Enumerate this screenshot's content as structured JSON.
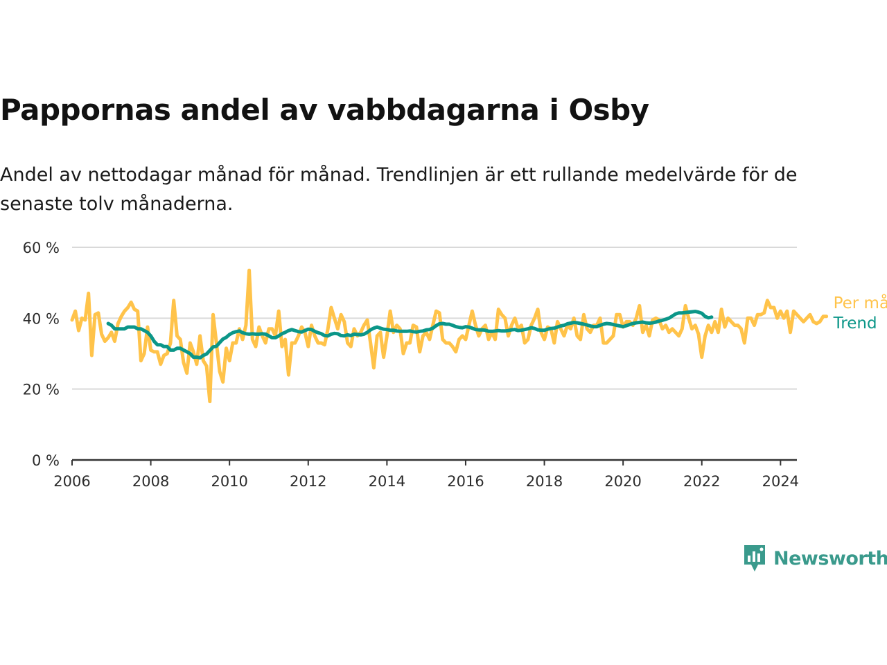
{
  "title": "Pappornas andel av vabbdagarna i Osby",
  "subtitle": "Andel av nettodagar månad för månad. Trendlinjen är ett rullande medelvärde för de senaste tolv månaderna.",
  "brand": {
    "name": "Newsworthy",
    "color": "#3a9a8c",
    "icon": "bar-chart-speech-bubble-icon"
  },
  "colors": {
    "monthly": "#ffc34a",
    "trend": "#0b9688",
    "grid": "#d9d9d9",
    "axis": "#333333"
  },
  "chart_data": {
    "type": "line",
    "title": "Pappornas andel av vabbdagarna i Osby",
    "xlabel": "",
    "ylabel": "",
    "xlim": [
      "2006-01",
      "2024-06"
    ],
    "ylim": [
      0,
      60
    ],
    "x_ticks": [
      "2006",
      "2008",
      "2010",
      "2012",
      "2014",
      "2016",
      "2018",
      "2020",
      "2022",
      "2024"
    ],
    "y_ticks": [
      "0 %",
      "20 %",
      "40 %",
      "60 %"
    ],
    "y_tick_values": [
      0,
      20,
      40,
      60
    ],
    "grid": true,
    "legend": "right-end-labels",
    "series": [
      {
        "name": "Per månad",
        "key": "monthly",
        "start": "2006-01",
        "frequency": "monthly",
        "values": [
          39.5,
          42,
          36.5,
          40,
          39.5,
          47,
          29.5,
          41,
          41.5,
          35.5,
          33.5,
          34.5,
          36,
          33.5,
          38.5,
          40.5,
          42,
          43,
          44.5,
          42.5,
          42,
          28,
          30,
          37.5,
          31,
          30.5,
          30.5,
          27,
          29.5,
          30,
          33,
          45,
          35,
          34,
          27.5,
          24.5,
          33,
          30.5,
          27,
          35,
          28,
          26.5,
          16.5,
          41,
          33,
          25,
          22,
          31.5,
          28,
          33,
          33,
          37,
          34,
          38,
          53.5,
          34,
          32,
          37.5,
          35,
          33,
          37,
          37,
          35,
          42,
          32,
          34,
          24,
          33,
          33,
          35,
          37.5,
          36,
          32,
          38,
          35,
          33,
          33,
          32.5,
          37,
          43,
          40,
          37,
          41,
          39,
          33,
          32,
          37,
          35,
          36,
          38,
          39.5,
          33,
          26,
          35,
          36,
          29,
          35,
          42,
          36,
          38,
          37,
          30,
          33,
          33,
          38,
          37.5,
          30.5,
          35,
          36,
          34,
          38,
          42,
          41.5,
          34,
          33,
          33,
          32,
          30.5,
          34,
          35,
          34,
          38,
          42,
          38,
          35,
          37,
          38,
          34,
          36,
          34,
          42.5,
          41,
          40,
          35,
          38,
          40,
          37,
          38,
          33,
          34,
          38,
          40,
          42.5,
          36,
          34,
          37.5,
          37,
          33,
          39,
          37,
          35,
          38,
          37,
          40,
          35,
          34,
          41,
          37,
          36,
          38,
          38,
          40,
          33,
          33,
          34,
          35,
          41,
          41,
          37.5,
          39,
          39,
          38,
          40,
          43.5,
          36,
          38,
          35,
          39.5,
          40,
          39.5,
          37,
          38,
          36,
          37,
          36,
          35,
          37,
          43.5,
          40,
          37,
          38,
          35.5,
          29,
          35,
          38,
          36,
          39,
          36,
          42.5,
          37.5,
          40,
          39,
          38,
          38,
          37,
          33,
          40,
          40,
          38,
          41,
          41,
          41.5,
          45,
          43,
          43,
          40,
          42,
          40,
          42,
          36,
          42,
          41,
          40,
          39,
          40,
          41,
          39,
          38.5,
          39,
          40.5,
          40.5
        ]
      },
      {
        "name": "Trend",
        "key": "trend",
        "start": "2006-12",
        "frequency": "monthly",
        "values": [
          38.5,
          38,
          37,
          37,
          37,
          37,
          37.5,
          37.5,
          37.5,
          37,
          37,
          36.5,
          36,
          35,
          33.5,
          32.5,
          32.5,
          32,
          32,
          31,
          31,
          31.5,
          31.5,
          31,
          30.5,
          30,
          29,
          29,
          28.8,
          29.5,
          29.9,
          30.9,
          31.9,
          32.1,
          33.1,
          34.1,
          34.6,
          35.4,
          35.9,
          36.2,
          36.4,
          35.9,
          35.6,
          35.5,
          35.6,
          35.5,
          35.5,
          35.6,
          35.5,
          35,
          34.5,
          34.5,
          35,
          35.6,
          36,
          36.5,
          36.8,
          36.5,
          36.2,
          36.1,
          36.5,
          36.9,
          36.8,
          36.3,
          35.9,
          35.6,
          35.1,
          35,
          35.5,
          35.7,
          35.6,
          35.1,
          35,
          35.3,
          35.1,
          35.5,
          35.4,
          35.3,
          35.5,
          36,
          36.7,
          37.2,
          37.5,
          37.2,
          36.9,
          36.8,
          36.6,
          36.6,
          36.4,
          36.3,
          36.3,
          36.3,
          36.4,
          36.2,
          36.1,
          36.3,
          36.4,
          36.7,
          36.8,
          37.2,
          37.9,
          38.4,
          38.5,
          38.3,
          38.3,
          38,
          37.6,
          37.4,
          37.3,
          37.6,
          37.5,
          37.2,
          36.8,
          36.7,
          36.7,
          36.6,
          36.3,
          36.3,
          36.4,
          36.5,
          36.4,
          36.4,
          36.5,
          36.7,
          36.8,
          36.5,
          36.6,
          36.8,
          37,
          37.3,
          37.1,
          36.7,
          36.6,
          36.6,
          36.9,
          37.1,
          37.2,
          37.5,
          37.8,
          38,
          38.4,
          38.6,
          38.8,
          38.7,
          38.5,
          38.3,
          38.1,
          37.8,
          37.6,
          37.6,
          38,
          38.3,
          38.5,
          38.4,
          38.2,
          38,
          37.8,
          37.6,
          37.9,
          38.2,
          38.5,
          38.7,
          38.8,
          38.9,
          38.7,
          38.6,
          38.7,
          38.9,
          39.2,
          39.4,
          39.7,
          40,
          40.6,
          41.2,
          41.5,
          41.5,
          41.6,
          41.7,
          41.8,
          41.9,
          41.7,
          41.4,
          40.5,
          40.1,
          40.3
        ]
      }
    ]
  }
}
